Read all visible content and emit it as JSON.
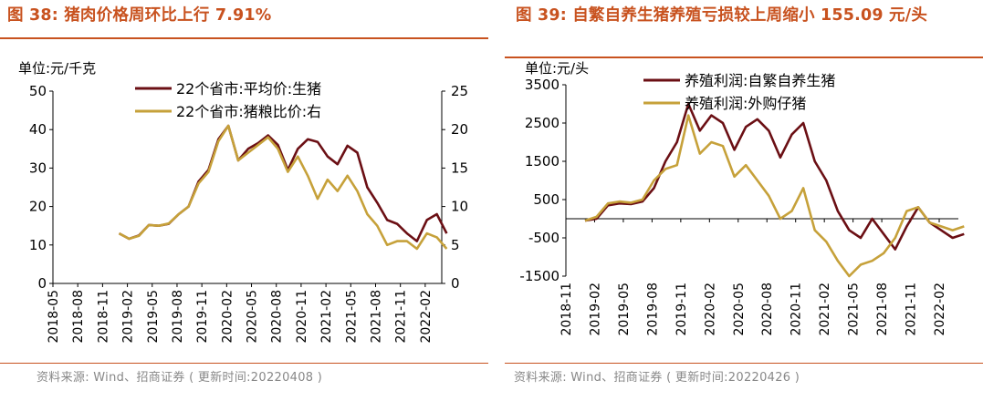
{
  "charts": [
    {
      "title": "图 38:  猪肉价格周环比上行 7.91%",
      "unit": "单位:元/千克",
      "source": "资料来源:  Wind、招商证券 ( 更新时间:20220408 )",
      "series_colors": [
        "#6b0f14",
        "#c6a13a"
      ]
    },
    {
      "title": "图 39:  自繁自养生猪养殖亏损较上周缩小 155.09 元/头",
      "unit": "单位:元/头",
      "source": "资料来源:  Wind、招商证券 ( 更新时间:20220426 )",
      "series_colors": [
        "#6b0f14",
        "#c6a13a"
      ]
    }
  ],
  "chart_data": [
    {
      "type": "line",
      "x_ticks": [
        "2018-05",
        "2018-08",
        "2018-11",
        "2019-02",
        "2019-05",
        "2019-08",
        "2019-11",
        "2020-02",
        "2020-05",
        "2020-08",
        "2020-11",
        "2021-02",
        "2021-05",
        "2021-08",
        "2021-11",
        "2022-02"
      ],
      "x_range": [
        "2018-05",
        "2022-04"
      ],
      "ylim_left": [
        0,
        50
      ],
      "yticks_left": [
        "0",
        "10",
        "20",
        "30",
        "40",
        "50"
      ],
      "ylim_right": [
        0,
        25
      ],
      "yticks_right": [
        "0",
        "5",
        "10",
        "15",
        "20",
        "25"
      ],
      "legend_position": "top-center",
      "series": [
        {
          "name": "22个省市:平均价:生猪",
          "axis": "left",
          "x": [
            2019.0,
            2019.1,
            2019.2,
            2019.3,
            2019.4,
            2019.5,
            2019.6,
            2019.7,
            2019.8,
            2019.9,
            2020.0,
            2020.1,
            2020.2,
            2020.3,
            2020.4,
            2020.5,
            2020.6,
            2020.7,
            2020.8,
            2020.9,
            2021.0,
            2021.1,
            2021.2,
            2021.3,
            2021.4,
            2021.5,
            2021.6,
            2021.7,
            2021.8,
            2021.9,
            2022.0,
            2022.1,
            2022.2,
            2022.3
          ],
          "values": [
            13.0,
            11.6,
            12.5,
            15.2,
            15.0,
            15.5,
            18.0,
            20.0,
            26.5,
            29.5,
            37.5,
            41.0,
            32.0,
            35.0,
            36.5,
            38.5,
            36.0,
            29.5,
            35.0,
            37.5,
            36.8,
            33.0,
            31.0,
            35.8,
            34.0,
            25.0,
            21.0,
            16.5,
            15.5,
            13.0,
            11.0,
            16.5,
            18.0,
            13.0
          ]
        },
        {
          "name": "22个省市:猪粮比价:右",
          "axis": "right",
          "x": [
            2019.0,
            2019.1,
            2019.2,
            2019.3,
            2019.4,
            2019.5,
            2019.6,
            2019.7,
            2019.8,
            2019.9,
            2020.0,
            2020.1,
            2020.2,
            2020.3,
            2020.4,
            2020.5,
            2020.6,
            2020.7,
            2020.8,
            2020.9,
            2021.0,
            2021.1,
            2021.2,
            2021.3,
            2021.4,
            2021.5,
            2021.6,
            2021.7,
            2021.8,
            2021.9,
            2022.0,
            2022.1,
            2022.2,
            2022.3
          ],
          "values": [
            6.5,
            5.8,
            6.2,
            7.6,
            7.5,
            7.8,
            9.0,
            10.0,
            13.0,
            14.5,
            18.5,
            20.5,
            16.0,
            17.0,
            18.0,
            19.0,
            17.5,
            14.5,
            16.5,
            14.0,
            11.0,
            13.5,
            12.0,
            14.0,
            12.0,
            9.0,
            7.5,
            5.0,
            5.5,
            5.5,
            4.5,
            6.5,
            6.0,
            4.5
          ]
        }
      ]
    },
    {
      "type": "line",
      "x_ticks": [
        "2018-11",
        "2019-02",
        "2019-05",
        "2019-08",
        "2019-11",
        "2020-02",
        "2020-05",
        "2020-08",
        "2020-11",
        "2021-02",
        "2021-05",
        "2021-08",
        "2021-11",
        "2022-02"
      ],
      "x_range": [
        "2018-11",
        "2022-04"
      ],
      "ylim": [
        -1500,
        3500
      ],
      "yticks": [
        "-1500",
        "-500",
        "500",
        "1500",
        "2500",
        "3500"
      ],
      "legend_position": "top-center",
      "series": [
        {
          "name": "养殖利润:自繁自养生猪",
          "x": [
            2019.0,
            2019.1,
            2019.2,
            2019.3,
            2019.4,
            2019.5,
            2019.6,
            2019.7,
            2019.8,
            2019.9,
            2020.0,
            2020.1,
            2020.2,
            2020.3,
            2020.4,
            2020.5,
            2020.6,
            2020.7,
            2020.8,
            2020.9,
            2021.0,
            2021.1,
            2021.2,
            2021.3,
            2021.4,
            2021.5,
            2021.6,
            2021.7,
            2021.8,
            2021.9,
            2022.0,
            2022.1,
            2022.2,
            2022.3
          ],
          "values": [
            -50,
            0,
            350,
            400,
            380,
            450,
            800,
            1500,
            2000,
            3000,
            2300,
            2700,
            2500,
            1800,
            2400,
            2600,
            2300,
            1600,
            2200,
            2500,
            1500,
            1000,
            200,
            -300,
            -500,
            0,
            -400,
            -800,
            -200,
            300,
            -100,
            -300,
            -500,
            -400
          ]
        },
        {
          "name": "养殖利润:外购仔猪",
          "x": [
            2019.0,
            2019.1,
            2019.2,
            2019.3,
            2019.4,
            2019.5,
            2019.6,
            2019.7,
            2019.8,
            2019.9,
            2020.0,
            2020.1,
            2020.2,
            2020.3,
            2020.4,
            2020.5,
            2020.6,
            2020.7,
            2020.8,
            2020.9,
            2021.0,
            2021.1,
            2021.2,
            2021.3,
            2021.4,
            2021.5,
            2021.6,
            2021.7,
            2021.8,
            2021.9,
            2022.0,
            2022.1,
            2022.2,
            2022.3
          ],
          "values": [
            -50,
            50,
            400,
            450,
            420,
            500,
            1000,
            1300,
            1400,
            2700,
            1700,
            2000,
            1900,
            1100,
            1400,
            1000,
            600,
            0,
            200,
            800,
            -300,
            -600,
            -1100,
            -1500,
            -1200,
            -1100,
            -900,
            -500,
            200,
            300,
            -100,
            -200,
            -300,
            -200
          ]
        }
      ]
    }
  ]
}
